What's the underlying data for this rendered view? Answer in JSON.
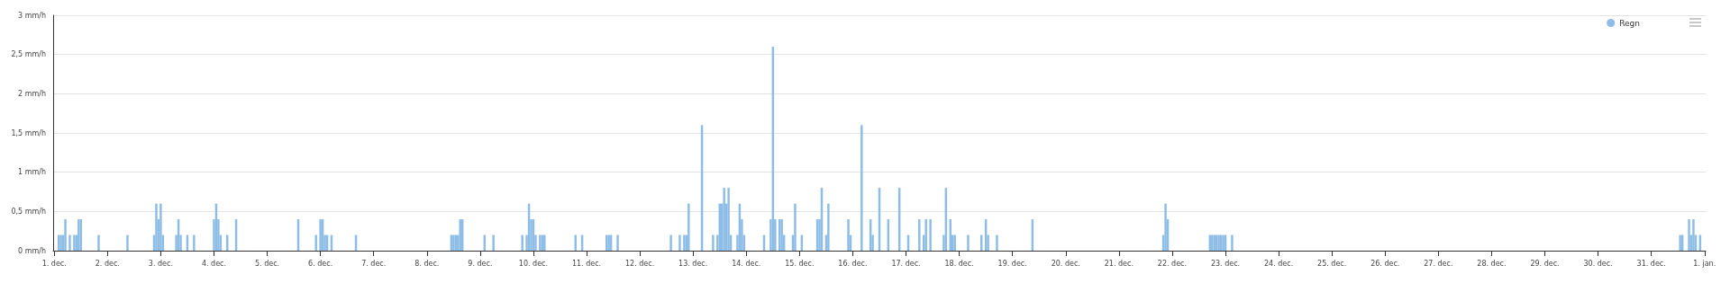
{
  "chart_data": {
    "type": "bar",
    "legend": "top right",
    "grid": "y",
    "categories": [
      "1. dec.",
      null,
      null,
      null,
      null,
      null,
      null,
      null,
      null,
      null,
      null,
      null,
      null,
      null,
      null,
      null,
      null,
      null,
      null,
      null,
      null,
      null,
      null,
      null,
      "2. dec.",
      null,
      null,
      null,
      null,
      null,
      null,
      null,
      null,
      null,
      null,
      null,
      null,
      null,
      null,
      null,
      null,
      null,
      null,
      null,
      null,
      null,
      null,
      null,
      "3. dec.",
      null,
      null,
      null,
      null,
      null,
      null,
      null,
      null,
      null,
      null,
      null,
      null,
      null,
      null,
      null,
      null,
      null,
      null,
      null,
      null,
      null,
      null,
      null,
      "4. dec.",
      null,
      null,
      null,
      null,
      null,
      null,
      null,
      null,
      null,
      null,
      null,
      null,
      null,
      null,
      null,
      null,
      null,
      null,
      null,
      null,
      null,
      null,
      null,
      "5. dec.",
      null,
      null,
      null,
      null,
      null,
      null,
      null,
      null,
      null,
      null,
      null,
      null,
      null,
      null,
      null,
      null,
      null,
      null,
      null,
      null,
      null,
      null,
      null,
      "6. dec.",
      null,
      null,
      null,
      null,
      null,
      null,
      null,
      null,
      null,
      null,
      null,
      null,
      null,
      null,
      null,
      null,
      null,
      null,
      null,
      null,
      null,
      null,
      null,
      "7. dec.",
      null,
      null,
      null,
      null,
      null,
      null,
      null,
      null,
      null,
      null,
      null,
      null,
      null,
      null,
      null,
      null,
      null,
      null,
      null,
      null,
      null,
      null,
      null,
      "8. dec.",
      null,
      null,
      null,
      null,
      null,
      null,
      null,
      null,
      null,
      null,
      null,
      null,
      null,
      null,
      null,
      null,
      null,
      null,
      null,
      null,
      null,
      null,
      null,
      "9. dec.",
      null,
      null,
      null,
      null,
      null,
      null,
      null,
      null,
      null,
      null,
      null,
      null,
      null,
      null,
      null,
      null,
      null,
      null,
      null,
      null,
      null,
      null,
      null,
      "10. dec.",
      null,
      null,
      null,
      null,
      null,
      null,
      null,
      null,
      null,
      null,
      null,
      null,
      null,
      null,
      null,
      null,
      null,
      null,
      null,
      null,
      null,
      null,
      null,
      "11. dec.",
      null,
      null,
      null,
      null,
      null,
      null,
      null,
      null,
      null,
      null,
      null,
      null,
      null,
      null,
      null,
      null,
      null,
      null,
      null,
      null,
      null,
      null,
      null,
      "12. dec.",
      null,
      null,
      null,
      null,
      null,
      null,
      null,
      null,
      null,
      null,
      null,
      null,
      null,
      null,
      null,
      null,
      null,
      null,
      null,
      null,
      null,
      null,
      null,
      "13. dec.",
      null,
      null,
      null,
      null,
      null,
      null,
      null,
      null,
      null,
      null,
      null,
      null,
      null,
      null,
      null,
      null,
      null,
      null,
      null,
      null,
      null,
      null,
      null,
      "14. dec.",
      null,
      null,
      null,
      null,
      null,
      null,
      null,
      null,
      null,
      null,
      null,
      null,
      null,
      null,
      null,
      null,
      null,
      null,
      null,
      null,
      null,
      null,
      null,
      "15. dec.",
      null,
      null,
      null,
      null,
      null,
      null,
      null,
      null,
      null,
      null,
      null,
      null,
      null,
      null,
      null,
      null,
      null,
      null,
      null,
      null,
      null,
      null,
      null,
      "16. dec.",
      null,
      null,
      null,
      null,
      null,
      null,
      null,
      null,
      null,
      null,
      null,
      null,
      null,
      null,
      null,
      null,
      null,
      null,
      null,
      null,
      null,
      null,
      null,
      "17. dec.",
      null,
      null,
      null,
      null,
      null,
      null,
      null,
      null,
      null,
      null,
      null,
      null,
      null,
      null,
      null,
      null,
      null,
      null,
      null,
      null,
      null,
      null,
      null,
      "18. dec.",
      null,
      null,
      null,
      null,
      null,
      null,
      null,
      null,
      null,
      null,
      null,
      null,
      null,
      null,
      null,
      null,
      null,
      null,
      null,
      null,
      null,
      null,
      null,
      "19. dec.",
      null,
      null,
      null,
      null,
      null,
      null,
      null,
      null,
      null,
      null,
      null,
      null,
      null,
      null,
      null,
      null,
      null,
      null,
      null,
      null,
      null,
      null,
      null,
      "20. dec.",
      null,
      null,
      null,
      null,
      null,
      null,
      null,
      null,
      null,
      null,
      null,
      null,
      null,
      null,
      null,
      null,
      null,
      null,
      null,
      null,
      null,
      null,
      null,
      "21. dec.",
      null,
      null,
      null,
      null,
      null,
      null,
      null,
      null,
      null,
      null,
      null,
      null,
      null,
      null,
      null,
      null,
      null,
      null,
      null,
      null,
      null,
      null,
      null,
      "22. dec.",
      null,
      null,
      null,
      null,
      null,
      null,
      null,
      null,
      null,
      null,
      null,
      null,
      null,
      null,
      null,
      null,
      null,
      null,
      null,
      null,
      null,
      null,
      null,
      "23. dec.",
      null,
      null,
      null,
      null,
      null,
      null,
      null,
      null,
      null,
      null,
      null,
      null,
      null,
      null,
      null,
      null,
      null,
      null,
      null,
      null,
      null,
      null,
      null,
      "24. dec.",
      null,
      null,
      null,
      null,
      null,
      null,
      null,
      null,
      null,
      null,
      null,
      null,
      null,
      null,
      null,
      null,
      null,
      null,
      null,
      null,
      null,
      null,
      null,
      "25. dec.",
      null,
      null,
      null,
      null,
      null,
      null,
      null,
      null,
      null,
      null,
      null,
      null,
      null,
      null,
      null,
      null,
      null,
      null,
      null,
      null,
      null,
      null,
      null,
      "26. dec.",
      null,
      null,
      null,
      null,
      null,
      null,
      null,
      null,
      null,
      null,
      null,
      null,
      null,
      null,
      null,
      null,
      null,
      null,
      null,
      null,
      null,
      null,
      null,
      "27. dec.",
      null,
      null,
      null,
      null,
      null,
      null,
      null,
      null,
      null,
      null,
      null,
      null,
      null,
      null,
      null,
      null,
      null,
      null,
      null,
      null,
      null,
      null,
      null,
      "28. dec.",
      null,
      null,
      null,
      null,
      null,
      null,
      null,
      null,
      null,
      null,
      null,
      null,
      null,
      null,
      null,
      null,
      null,
      null,
      null,
      null,
      null,
      null,
      null,
      "29. dec.",
      null,
      null,
      null,
      null,
      null,
      null,
      null,
      null,
      null,
      null,
      null,
      null,
      null,
      null,
      null,
      null,
      null,
      null,
      null,
      null,
      null,
      null,
      null,
      "30. dec.",
      null,
      null,
      null,
      null,
      null,
      null,
      null,
      null,
      null,
      null,
      null,
      null,
      null,
      null,
      null,
      null,
      null,
      null,
      null,
      null,
      null,
      null,
      null,
      "31. dec.",
      null,
      null,
      null,
      null,
      null,
      null,
      null,
      null,
      null,
      null,
      null,
      null,
      null,
      null,
      null,
      null,
      null,
      null,
      null,
      null,
      null,
      null,
      null,
      "1. jan."
    ],
    "ylim": [
      0,
      3
    ],
    "yticks": [
      {
        "value": 0,
        "label": "0 mm/h"
      },
      {
        "value": 0.5,
        "label": "0,5 mm/h"
      },
      {
        "value": 1,
        "label": "1 mm/h"
      },
      {
        "value": 1.5,
        "label": "1,5 mm/h"
      },
      {
        "value": 2,
        "label": "2 mm/h"
      },
      {
        "value": 2.5,
        "label": "2,5 mm/h"
      },
      {
        "value": 3,
        "label": "3 mm/h"
      }
    ],
    "series": [
      {
        "name": "Regn",
        "color": "#8dbde6",
        "values": [
          null,
          null,
          0.2,
          0.2,
          0.2,
          0.4,
          null,
          0.2,
          null,
          0.2,
          0.2,
          0.4,
          0.4,
          null,
          null,
          null,
          null,
          null,
          null,
          null,
          0.2,
          null,
          null,
          null,
          null,
          null,
          null,
          null,
          null,
          null,
          null,
          null,
          null,
          0.2,
          null,
          null,
          null,
          null,
          null,
          null,
          null,
          null,
          null,
          null,
          null,
          0.2,
          0.6,
          0.4,
          0.6,
          0.2,
          null,
          null,
          null,
          null,
          null,
          0.2,
          0.4,
          0.2,
          null,
          null,
          0.2,
          null,
          null,
          0.2,
          null,
          null,
          null,
          null,
          null,
          null,
          null,
          null,
          0.4,
          0.6,
          0.4,
          0.2,
          null,
          null,
          0.2,
          null,
          null,
          null,
          0.4,
          null,
          null,
          null,
          null,
          null,
          null,
          null,
          null,
          null,
          null,
          null,
          null,
          null,
          null,
          null,
          null,
          null,
          null,
          null,
          null,
          null,
          null,
          null,
          null,
          null,
          null,
          null,
          0.4,
          null,
          null,
          null,
          null,
          null,
          null,
          null,
          0.2,
          null,
          0.4,
          0.4,
          0.2,
          0.2,
          null,
          0.2,
          null,
          null,
          null,
          null,
          null,
          null,
          null,
          null,
          null,
          null,
          0.2,
          null,
          null,
          null,
          null,
          null,
          null,
          null,
          null,
          null,
          null,
          null,
          null,
          null,
          null,
          null,
          null,
          null,
          null,
          null,
          null,
          null,
          null,
          null,
          null,
          null,
          null,
          null,
          null,
          null,
          null,
          null,
          null,
          null,
          null,
          null,
          null,
          null,
          null,
          null,
          null,
          null,
          null,
          0.2,
          0.2,
          0.2,
          0.2,
          0.4,
          0.4,
          null,
          null,
          null,
          null,
          null,
          null,
          null,
          null,
          null,
          0.2,
          null,
          null,
          null,
          0.2,
          null,
          null,
          null,
          null,
          null,
          null,
          null,
          null,
          null,
          null,
          null,
          null,
          0.2,
          null,
          0.2,
          0.6,
          0.4,
          0.4,
          0.2,
          null,
          0.2,
          0.2,
          0.2,
          null,
          null,
          null,
          null,
          null,
          null,
          null,
          null,
          null,
          null,
          null,
          null,
          null,
          0.2,
          null,
          null,
          0.2,
          null,
          null,
          null,
          null,
          null,
          null,
          null,
          null,
          null,
          null,
          0.2,
          0.2,
          0.2,
          null,
          null,
          0.2,
          null,
          null,
          null,
          null,
          null,
          null,
          null,
          null,
          null,
          null,
          null,
          null,
          null,
          null,
          null,
          null,
          null,
          null,
          null,
          null,
          null,
          null,
          null,
          0.2,
          null,
          null,
          null,
          0.2,
          null,
          0.2,
          0.2,
          0.6,
          null,
          null,
          null,
          null,
          null,
          1.6,
          null,
          null,
          null,
          null,
          0.2,
          null,
          0.2,
          0.6,
          0.6,
          0.8,
          0.6,
          0.8,
          0.2,
          null,
          null,
          0.2,
          0.6,
          0.4,
          0.2,
          null,
          null,
          null,
          null,
          null,
          null,
          null,
          null,
          0.2,
          null,
          null,
          0.4,
          2.6,
          0.4,
          null,
          0.4,
          0.4,
          0.2,
          null,
          null,
          null,
          0.2,
          0.6,
          null,
          null,
          0.2,
          null,
          null,
          null,
          null,
          null,
          null,
          0.4,
          0.4,
          0.8,
          null,
          0.2,
          0.6,
          null,
          null,
          null,
          null,
          null,
          null,
          null,
          null,
          0.4,
          0.2,
          null,
          null,
          null,
          null,
          1.6,
          null,
          null,
          null,
          0.4,
          0.2,
          null,
          null,
          0.8,
          null,
          null,
          null,
          0.4,
          null,
          null,
          null,
          null,
          0.8,
          null,
          null,
          null,
          0.2,
          null,
          null,
          null,
          null,
          0.4,
          null,
          0.2,
          0.4,
          null,
          0.4,
          null,
          null,
          null,
          null,
          null,
          0.2,
          0.8,
          null,
          0.4,
          0.2,
          0.2,
          null,
          null,
          null,
          null,
          null,
          0.2,
          null,
          null,
          null,
          null,
          null,
          0.2,
          null,
          0.4,
          0.2,
          null,
          null,
          null,
          0.2,
          null,
          null,
          null,
          null,
          null,
          null,
          null,
          null,
          null,
          null,
          null,
          null,
          null,
          null,
          null,
          0.4,
          null,
          null,
          null,
          null,
          null,
          null,
          null,
          null,
          null,
          null,
          null,
          null,
          null,
          null,
          null,
          null,
          null,
          null,
          null,
          null,
          null,
          null,
          null,
          null,
          null,
          null,
          null,
          null,
          null,
          null,
          null,
          null,
          null,
          null,
          null,
          null,
          null,
          null,
          null,
          null,
          null,
          null,
          null,
          null,
          null,
          null,
          null,
          null,
          null,
          null,
          null,
          null,
          null,
          null,
          null,
          null,
          null,
          null,
          0.2,
          0.6,
          0.4,
          null,
          null,
          null,
          null,
          null,
          null,
          null,
          null,
          null,
          null,
          null,
          null,
          null,
          null,
          null,
          null,
          null,
          null,
          0.2,
          0.2,
          0.2,
          0.2,
          0.2,
          0.2,
          0.2,
          0.2,
          null,
          null,
          0.2,
          null,
          null,
          null,
          null,
          null,
          null,
          null,
          null,
          null,
          null,
          null,
          null,
          null,
          null,
          null,
          null,
          null,
          null,
          null,
          null,
          null,
          null,
          null,
          null,
          null,
          null,
          null,
          null,
          null,
          null,
          null,
          null,
          null,
          null,
          null,
          null,
          null,
          null,
          null,
          null,
          null,
          null,
          null,
          null,
          null,
          null,
          null,
          null,
          null,
          null,
          null,
          null,
          null,
          null,
          null,
          null,
          null,
          null,
          null,
          null,
          null,
          null,
          null,
          null,
          null,
          null,
          null,
          null,
          null,
          null,
          null,
          null,
          null,
          null,
          null,
          null,
          null,
          null,
          null,
          null,
          null,
          null,
          null,
          null,
          null,
          null,
          null,
          null,
          null,
          null,
          null,
          null,
          null,
          null,
          null,
          null,
          null,
          null,
          null,
          null,
          null,
          null,
          null,
          null,
          null,
          null,
          null,
          null,
          null,
          null,
          null,
          null,
          null,
          null,
          null,
          null,
          null,
          null,
          null,
          null,
          null,
          null,
          null,
          null,
          null,
          null,
          null,
          null,
          null,
          null,
          null,
          null,
          null,
          null,
          null,
          null,
          null,
          null,
          null,
          null,
          null,
          null,
          null,
          null,
          null,
          null,
          null,
          null,
          null,
          null,
          null,
          null,
          null,
          null,
          null,
          null,
          null,
          null,
          null,
          null,
          null,
          null,
          null,
          null,
          null,
          null,
          null,
          null,
          null,
          null,
          null,
          null,
          null,
          null,
          null,
          null,
          null,
          null,
          null,
          null,
          null,
          null,
          null,
          null,
          null,
          null,
          null,
          null,
          null,
          null,
          null,
          null,
          null,
          null,
          null,
          null,
          null,
          null,
          null,
          null,
          null,
          0.2,
          0.2,
          null,
          null,
          0.4,
          0.2,
          0.4,
          0.2,
          null,
          0.2,
          null,
          null
        ]
      }
    ]
  }
}
